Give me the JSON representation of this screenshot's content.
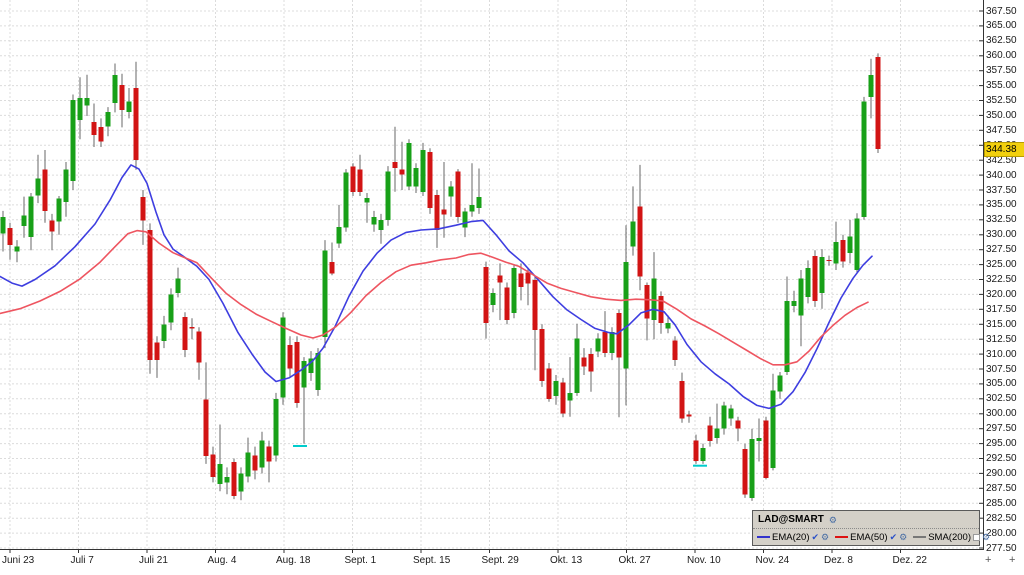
{
  "chart": {
    "instrument_label": "LAD@SMART",
    "price_badge": "344.38"
  },
  "colors": {
    "up": "#18a018",
    "down": "#d21414",
    "wick": "#676767",
    "grid": "#dcdcdc",
    "axis": "#333333",
    "ema20": "#3e3ee0",
    "ema50": "#ee5560",
    "sma200": "#888888",
    "badge_bg": "#f2d00e",
    "marker": "#00cccc",
    "panel_bg": "#d4d0c8"
  },
  "chart_data": {
    "type": "candlestick",
    "title": "LAD@SMART",
    "last_price": 344.38,
    "y_axis": {
      "min": 277.5,
      "max": 367.5,
      "step": 2.5,
      "format": "0.00"
    },
    "x_axis": {
      "tick_start": 10,
      "tick_spacing": 68.5,
      "labels": [
        "Juni 23",
        "Juli 7",
        "Juli 21",
        "Aug. 4",
        "Aug. 18",
        "Sept. 1",
        "Sept. 15",
        "Sept. 29",
        "Okt. 13",
        "Okt. 27",
        "Nov. 10",
        "Nov. 24",
        "Dez. 8",
        "Dez. 22"
      ]
    },
    "candle_x0": 3,
    "candle_dx": 7,
    "candles": [
      [
        330.2,
        334.0,
        327.2,
        333.0
      ],
      [
        331.1,
        332.0,
        325.8,
        328.3
      ],
      [
        327.2,
        329.1,
        325.4,
        328.0
      ],
      [
        331.5,
        336.4,
        329.5,
        333.2
      ],
      [
        329.6,
        337.0,
        327.4,
        336.4
      ],
      [
        336.6,
        343.4,
        335.3,
        339.4
      ],
      [
        340.9,
        344.2,
        332.0,
        334.0
      ],
      [
        332.4,
        333.5,
        327.4,
        330.5
      ],
      [
        332.2,
        336.5,
        330.0,
        336.1
      ],
      [
        335.5,
        342.2,
        333.0,
        340.9
      ],
      [
        339.0,
        353.5,
        337.5,
        352.6
      ],
      [
        349.2,
        356.4,
        346.0,
        352.9
      ],
      [
        351.7,
        356.8,
        349.9,
        352.9
      ],
      [
        348.9,
        352.0,
        344.7,
        346.7
      ],
      [
        348.1,
        349.5,
        344.7,
        345.6
      ],
      [
        348.1,
        351.4,
        346.5,
        350.6
      ],
      [
        352.1,
        358.7,
        350.5,
        356.8
      ],
      [
        355.1,
        357.0,
        348.0,
        350.9
      ],
      [
        350.6,
        354.6,
        349.5,
        352.3
      ],
      [
        354.6,
        359.0,
        340.9,
        342.5
      ],
      [
        336.3,
        337.5,
        328.3,
        332.4
      ],
      [
        330.8,
        331.9,
        306.7,
        309.0
      ],
      [
        311.9,
        313.0,
        306.0,
        309.0
      ],
      [
        312.2,
        316.4,
        311.0,
        315.0
      ],
      [
        315.3,
        321.0,
        314.0,
        320.0
      ],
      [
        320.2,
        324.5,
        319.5,
        322.7
      ],
      [
        316.2,
        317.0,
        309.5,
        310.7
      ],
      [
        314.5,
        316.0,
        312.5,
        314.3
      ],
      [
        313.8,
        314.5,
        305.7,
        308.6
      ],
      [
        302.4,
        308.6,
        291.6,
        292.9
      ],
      [
        293.2,
        294.5,
        288.5,
        289.4
      ],
      [
        288.2,
        298.2,
        287.0,
        291.6
      ],
      [
        288.5,
        291.0,
        286.5,
        289.4
      ],
      [
        291.9,
        292.5,
        285.7,
        286.2
      ],
      [
        287.0,
        291.0,
        285.5,
        290.0
      ],
      [
        289.5,
        296.0,
        288.5,
        293.5
      ],
      [
        293.0,
        294.5,
        289.0,
        290.5
      ],
      [
        291.0,
        297.0,
        290.0,
        295.5
      ],
      [
        294.5,
        295.5,
        288.5,
        292.0
      ],
      [
        293.0,
        303.5,
        292.0,
        302.5
      ],
      [
        302.7,
        317.0,
        301.5,
        316.1
      ],
      [
        311.5,
        313.0,
        306.0,
        307.6
      ],
      [
        312.0,
        313.0,
        301.0,
        301.8
      ],
      [
        304.4,
        309.5,
        295.0,
        308.8
      ],
      [
        306.8,
        310.5,
        305.5,
        309.3
      ],
      [
        304.0,
        311.0,
        303.0,
        310.2
      ],
      [
        312.9,
        329.1,
        311.0,
        327.4
      ],
      [
        325.4,
        328.7,
        323.2,
        323.5
      ],
      [
        328.5,
        335.0,
        327.8,
        331.3
      ],
      [
        331.2,
        341.0,
        330.5,
        340.4
      ],
      [
        341.4,
        342.0,
        336.5,
        337.2
      ],
      [
        340.9,
        343.4,
        336.5,
        337.2
      ],
      [
        335.4,
        337.0,
        332.0,
        336.2
      ],
      [
        331.7,
        334.0,
        330.5,
        333.0
      ],
      [
        330.8,
        333.5,
        328.5,
        332.5
      ],
      [
        332.5,
        341.5,
        331.5,
        340.6
      ],
      [
        342.2,
        348.1,
        337.2,
        341.2
      ],
      [
        340.9,
        345.6,
        337.5,
        340.1
      ],
      [
        338.1,
        346.0,
        337.5,
        345.4
      ],
      [
        338.1,
        342.0,
        337.0,
        341.2
      ],
      [
        337.2,
        345.4,
        336.5,
        344.2
      ],
      [
        343.9,
        344.5,
        333.5,
        334.5
      ],
      [
        336.7,
        337.5,
        327.8,
        330.8
      ],
      [
        334.2,
        342.2,
        329.5,
        333.4
      ],
      [
        336.4,
        339.0,
        333.0,
        338.1
      ],
      [
        340.6,
        341.0,
        332.0,
        333.0
      ],
      [
        331.2,
        334.5,
        329.6,
        333.9
      ],
      [
        333.9,
        342.0,
        333.0,
        335.0
      ],
      [
        334.5,
        341.1,
        333.5,
        336.3
      ],
      [
        324.6,
        325.5,
        312.6,
        315.2
      ],
      [
        318.2,
        321.0,
        317.0,
        320.2
      ],
      [
        323.2,
        325.2,
        315.7,
        322.0
      ],
      [
        321.2,
        322.0,
        315.0,
        315.7
      ],
      [
        316.9,
        325.0,
        316.0,
        324.4
      ],
      [
        323.5,
        325.2,
        319.0,
        321.2
      ],
      [
        323.7,
        324.5,
        318.2,
        321.8
      ],
      [
        322.4,
        323.0,
        307.3,
        314.0
      ],
      [
        314.2,
        315.0,
        304.5,
        305.5
      ],
      [
        307.6,
        308.5,
        302.0,
        302.5
      ],
      [
        303.0,
        306.5,
        301.5,
        305.5
      ],
      [
        305.2,
        306.0,
        299.4,
        300.0
      ],
      [
        302.2,
        309.5,
        299.5,
        303.5
      ],
      [
        303.5,
        315.1,
        303.0,
        312.6
      ],
      [
        309.4,
        311.0,
        306.5,
        307.9
      ],
      [
        310.0,
        311.0,
        303.7,
        307.1
      ],
      [
        310.4,
        313.5,
        309.5,
        312.6
      ],
      [
        313.7,
        317.2,
        309.5,
        310.2
      ],
      [
        310.2,
        314.5,
        309.0,
        313.7
      ],
      [
        316.9,
        317.5,
        299.4,
        309.4
      ],
      [
        307.6,
        331.6,
        301.4,
        325.4
      ],
      [
        328.0,
        338.1,
        326.5,
        332.2
      ],
      [
        334.7,
        341.7,
        320.7,
        323.0
      ],
      [
        321.6,
        322.0,
        312.3,
        316.0
      ],
      [
        315.7,
        327.1,
        312.5,
        322.7
      ],
      [
        319.7,
        320.5,
        313.4,
        315.2
      ],
      [
        314.3,
        316.5,
        313.5,
        315.2
      ],
      [
        312.3,
        313.0,
        308.0,
        309.0
      ],
      [
        305.5,
        306.9,
        298.5,
        299.2
      ],
      [
        299.9,
        300.5,
        298.5,
        299.5
      ],
      [
        295.5,
        296.5,
        291.6,
        292.1
      ],
      [
        292.1,
        295.0,
        291.6,
        294.3
      ],
      [
        298.0,
        299.5,
        294.5,
        295.4
      ],
      [
        295.9,
        301.7,
        295.0,
        297.5
      ],
      [
        297.5,
        302.0,
        296.5,
        301.4
      ],
      [
        299.2,
        301.5,
        298.0,
        300.9
      ],
      [
        298.9,
        299.5,
        295.4,
        297.5
      ],
      [
        294.1,
        295.0,
        285.9,
        286.5
      ],
      [
        285.9,
        297.5,
        285.4,
        295.8
      ],
      [
        295.4,
        299.2,
        292.0,
        295.9
      ],
      [
        298.9,
        299.5,
        289.0,
        289.2
      ],
      [
        290.9,
        306.7,
        290.5,
        303.9
      ],
      [
        303.7,
        307.0,
        302.5,
        306.4
      ],
      [
        307.0,
        323.0,
        306.5,
        318.9
      ],
      [
        318.1,
        320.6,
        317.0,
        318.9
      ],
      [
        316.5,
        324.1,
        311.3,
        322.7
      ],
      [
        319.6,
        325.7,
        318.5,
        324.4
      ],
      [
        326.4,
        327.4,
        317.9,
        318.9
      ],
      [
        320.2,
        327.6,
        317.6,
        326.3
      ],
      [
        325.8,
        326.5,
        324.8,
        325.6
      ],
      [
        325.2,
        332.2,
        324.1,
        328.8
      ],
      [
        329.1,
        330.0,
        324.5,
        325.5
      ],
      [
        326.9,
        332.5,
        325.2,
        329.7
      ],
      [
        324.1,
        333.6,
        323.5,
        332.7
      ],
      [
        333.0,
        353.1,
        332.5,
        352.3
      ],
      [
        353.1,
        359.5,
        349.5,
        356.8
      ],
      [
        359.8,
        360.4,
        343.7,
        344.38
      ]
    ],
    "markers": [
      {
        "x": 300,
        "price": 294.6,
        "color": "#00cccc"
      },
      {
        "x": 700,
        "price": 291.3,
        "color": "#00cccc"
      }
    ],
    "series": [
      {
        "name": "EMA(20)",
        "color": "#3e3ee0",
        "points": [
          [
            0,
            323
          ],
          [
            12,
            321.9
          ],
          [
            22,
            321.4
          ],
          [
            35,
            322.5
          ],
          [
            55,
            324.8
          ],
          [
            75,
            328.0
          ],
          [
            95,
            331.8
          ],
          [
            110,
            335.8
          ],
          [
            122,
            339.6
          ],
          [
            131,
            341.7
          ],
          [
            139,
            341.0
          ],
          [
            147,
            338.6
          ],
          [
            156,
            333.8
          ],
          [
            164,
            330.0
          ],
          [
            173,
            327.6
          ],
          [
            184,
            326.3
          ],
          [
            197,
            324.7
          ],
          [
            209,
            322.5
          ],
          [
            223,
            318.5
          ],
          [
            238,
            313.6
          ],
          [
            252,
            310.0
          ],
          [
            265,
            307.0
          ],
          [
            276,
            305.4
          ],
          [
            289,
            306.0
          ],
          [
            301,
            307.3
          ],
          [
            313,
            308.9
          ],
          [
            323,
            311.0
          ],
          [
            335,
            314.6
          ],
          [
            349,
            319.7
          ],
          [
            363,
            323.9
          ],
          [
            377,
            326.9
          ],
          [
            391,
            329.1
          ],
          [
            406,
            330.4
          ],
          [
            421,
            330.8
          ],
          [
            439,
            331.0
          ],
          [
            456,
            331.6
          ],
          [
            471,
            332.2
          ],
          [
            483,
            332.4
          ],
          [
            496,
            330.0
          ],
          [
            509,
            327.3
          ],
          [
            523,
            325.3
          ],
          [
            539,
            322.3
          ],
          [
            553,
            319.6
          ],
          [
            567,
            317.4
          ],
          [
            581,
            315.8
          ],
          [
            595,
            314.3
          ],
          [
            609,
            313.6
          ],
          [
            617,
            313.4
          ],
          [
            629,
            314.9
          ],
          [
            641,
            316.9
          ],
          [
            653,
            317.5
          ],
          [
            664,
            317.1
          ],
          [
            675,
            314.9
          ],
          [
            687,
            311.6
          ],
          [
            701,
            308.7
          ],
          [
            715,
            306.7
          ],
          [
            729,
            305.0
          ],
          [
            743,
            302.9
          ],
          [
            757,
            301.4
          ],
          [
            769,
            300.9
          ],
          [
            781,
            301.6
          ],
          [
            793,
            303.7
          ],
          [
            805,
            306.9
          ],
          [
            817,
            310.9
          ],
          [
            829,
            315.3
          ],
          [
            841,
            319.4
          ],
          [
            853,
            322.7
          ],
          [
            863,
            324.9
          ],
          [
            872,
            326.4
          ]
        ]
      },
      {
        "name": "EMA(50)",
        "color": "#ee5560",
        "points": [
          [
            0,
            316.8
          ],
          [
            20,
            317.6
          ],
          [
            40,
            318.9
          ],
          [
            60,
            320.5
          ],
          [
            80,
            322.6
          ],
          [
            100,
            325.4
          ],
          [
            115,
            328.0
          ],
          [
            128,
            330.2
          ],
          [
            137,
            330.7
          ],
          [
            146,
            330.5
          ],
          [
            159,
            328.6
          ],
          [
            173,
            327.0
          ],
          [
            187,
            326.0
          ],
          [
            197,
            325.3
          ],
          [
            211,
            322.8
          ],
          [
            226,
            320.2
          ],
          [
            241,
            318.3
          ],
          [
            256,
            316.7
          ],
          [
            271,
            315.5
          ],
          [
            286,
            314.3
          ],
          [
            301,
            313.2
          ],
          [
            313,
            312.7
          ],
          [
            323,
            313.2
          ],
          [
            336,
            314.6
          ],
          [
            351,
            317.0
          ],
          [
            366,
            319.8
          ],
          [
            381,
            322.0
          ],
          [
            396,
            323.8
          ],
          [
            411,
            324.9
          ],
          [
            426,
            325.3
          ],
          [
            441,
            325.8
          ],
          [
            456,
            326.1
          ],
          [
            469,
            326.7
          ],
          [
            481,
            326.9
          ],
          [
            493,
            326.2
          ],
          [
            506,
            325.4
          ],
          [
            519,
            324.7
          ],
          [
            533,
            323.3
          ],
          [
            547,
            321.9
          ],
          [
            561,
            321.0
          ],
          [
            576,
            320.3
          ],
          [
            591,
            319.6
          ],
          [
            606,
            319.2
          ],
          [
            621,
            319.0
          ],
          [
            636,
            319.2
          ],
          [
            651,
            319.1
          ],
          [
            663,
            318.9
          ],
          [
            677,
            317.5
          ],
          [
            691,
            315.9
          ],
          [
            705,
            314.7
          ],
          [
            719,
            313.4
          ],
          [
            733,
            312.0
          ],
          [
            747,
            310.6
          ],
          [
            761,
            309.2
          ],
          [
            773,
            308.2
          ],
          [
            785,
            308.2
          ],
          [
            797,
            308.7
          ],
          [
            809,
            310.5
          ],
          [
            821,
            312.9
          ],
          [
            833,
            314.8
          ],
          [
            845,
            316.5
          ],
          [
            857,
            317.8
          ],
          [
            868,
            318.7
          ]
        ]
      }
    ],
    "legend": [
      {
        "label": "EMA(20)",
        "color": "#3333cc",
        "checked": true
      },
      {
        "label": "EMA(50)",
        "color": "#dd1111",
        "checked": true
      },
      {
        "label": "SMA(200)",
        "color": "#777777",
        "checked": false
      }
    ],
    "corner_plus": [
      "+",
      "+"
    ]
  }
}
